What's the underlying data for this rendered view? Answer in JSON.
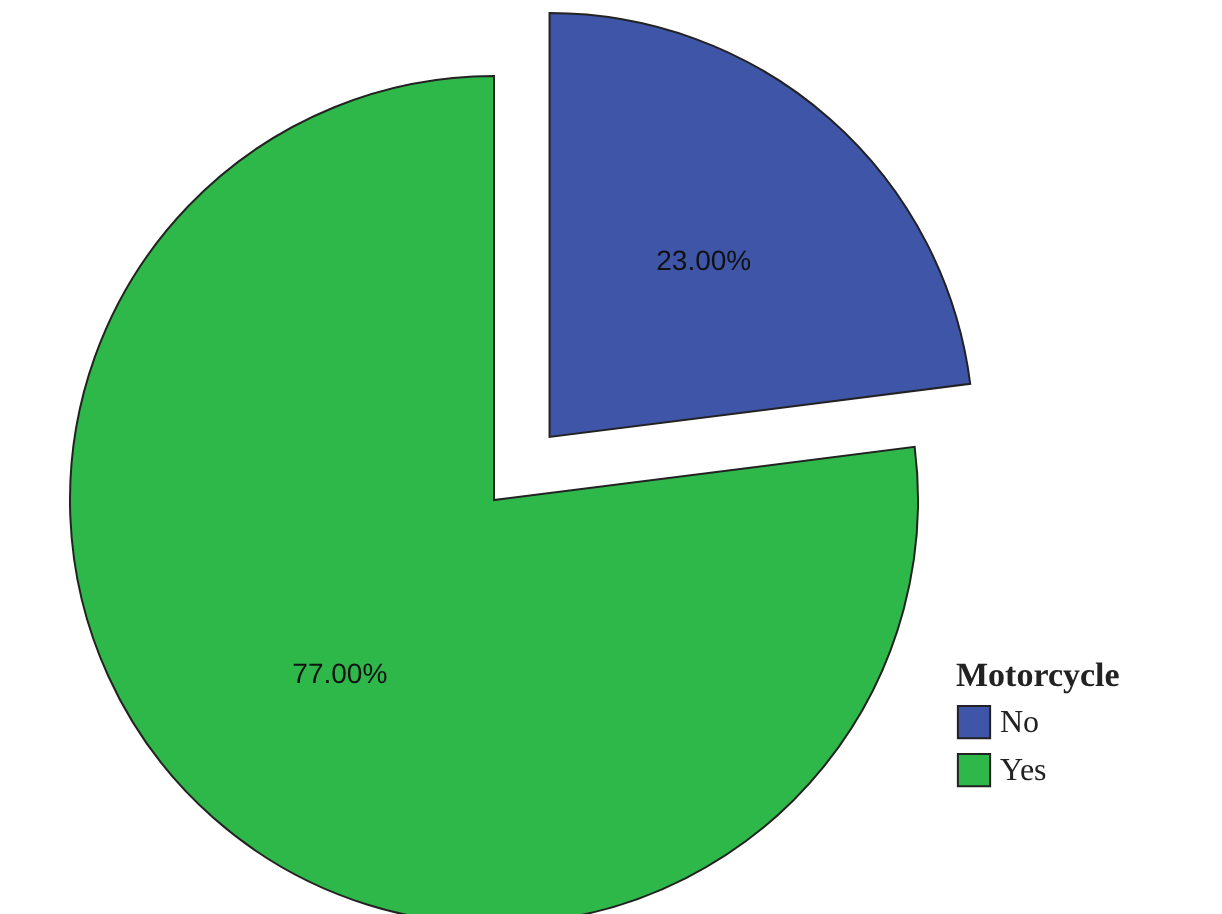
{
  "chart_data": {
    "type": "pie",
    "categories": [
      "No",
      "Yes"
    ],
    "values": [
      23,
      77
    ],
    "colors": [
      "#3f55a8",
      "#2eb84a"
    ],
    "value_labels": [
      "23.00%",
      "77.00%"
    ],
    "legend_title": "Motorcycle",
    "legend": "bottom right"
  }
}
